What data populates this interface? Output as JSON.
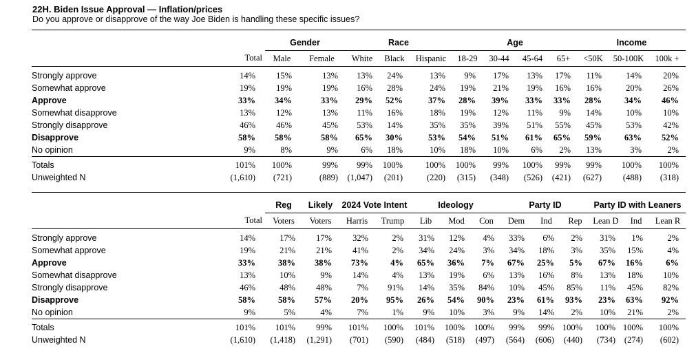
{
  "title": "22H. Biden Issue Approval — Inflation/prices",
  "subtitle": "Do you approve or disapprove of the way Joe Biden is handling these specific issues?",
  "tables": [
    {
      "groups": [
        {
          "label": "",
          "span": 1
        },
        {
          "label": "Gender",
          "span": 2
        },
        {
          "label": "Race",
          "span": 3
        },
        {
          "label": "Age",
          "span": 4
        },
        {
          "label": "Income",
          "span": 3
        }
      ],
      "columns": [
        "Total",
        "Male",
        "Female",
        "White",
        "Black",
        "Hispanic",
        "18-29",
        "30-44",
        "45-64",
        "65+",
        "<50K",
        "50-100K",
        "100k +"
      ],
      "rows": [
        {
          "label": "Strongly approve",
          "bold": false,
          "values": [
            "14%",
            "15%",
            "13%",
            "13%",
            "24%",
            "13%",
            "9%",
            "17%",
            "13%",
            "17%",
            "11%",
            "14%",
            "20%"
          ]
        },
        {
          "label": "Somewhat approve",
          "bold": false,
          "values": [
            "19%",
            "19%",
            "19%",
            "16%",
            "28%",
            "24%",
            "19%",
            "21%",
            "19%",
            "16%",
            "16%",
            "20%",
            "26%"
          ]
        },
        {
          "label": "Approve",
          "bold": true,
          "values": [
            "33%",
            "34%",
            "33%",
            "29%",
            "52%",
            "37%",
            "28%",
            "39%",
            "33%",
            "33%",
            "28%",
            "34%",
            "46%"
          ]
        },
        {
          "label": "Somewhat disapprove",
          "bold": false,
          "values": [
            "13%",
            "12%",
            "13%",
            "11%",
            "16%",
            "18%",
            "19%",
            "12%",
            "11%",
            "9%",
            "14%",
            "10%",
            "10%"
          ]
        },
        {
          "label": "Strongly disapprove",
          "bold": false,
          "values": [
            "46%",
            "46%",
            "45%",
            "53%",
            "14%",
            "35%",
            "35%",
            "39%",
            "51%",
            "55%",
            "45%",
            "53%",
            "42%"
          ]
        },
        {
          "label": "Disapprove",
          "bold": true,
          "values": [
            "58%",
            "58%",
            "58%",
            "65%",
            "30%",
            "53%",
            "54%",
            "51%",
            "61%",
            "65%",
            "59%",
            "63%",
            "52%"
          ]
        },
        {
          "label": "No opinion",
          "bold": false,
          "values": [
            "9%",
            "8%",
            "9%",
            "6%",
            "18%",
            "10%",
            "18%",
            "10%",
            "6%",
            "2%",
            "13%",
            "3%",
            "2%"
          ]
        }
      ],
      "totals": [
        {
          "label": "Totals",
          "values": [
            "101%",
            "100%",
            "99%",
            "99%",
            "100%",
            "100%",
            "100%",
            "99%",
            "100%",
            "99%",
            "99%",
            "100%",
            "100%"
          ]
        },
        {
          "label": "Unweighted N",
          "values": [
            "(1,610)",
            "(721)",
            "(889)",
            "(1,047)",
            "(201)",
            "(220)",
            "(315)",
            "(348)",
            "(526)",
            "(421)",
            "(627)",
            "(488)",
            "(318)"
          ]
        }
      ]
    },
    {
      "groups": [
        {
          "label": "",
          "span": 1
        },
        {
          "label": "Reg",
          "span": 1
        },
        {
          "label": "Likely",
          "span": 1
        },
        {
          "label": "2024 Vote Intent",
          "span": 2
        },
        {
          "label": "Ideology",
          "span": 3
        },
        {
          "label": "Party ID",
          "span": 3
        },
        {
          "label": "Party ID with Leaners",
          "span": 3
        }
      ],
      "columns": [
        "Total",
        "Voters",
        "Voters",
        "Harris",
        "Trump",
        "Lib",
        "Mod",
        "Con",
        "Dem",
        "Ind",
        "Rep",
        "Lean D",
        "Ind",
        "Lean R"
      ],
      "rows": [
        {
          "label": "Strongly approve",
          "bold": false,
          "values": [
            "14%",
            "17%",
            "17%",
            "32%",
            "2%",
            "31%",
            "12%",
            "4%",
            "33%",
            "6%",
            "2%",
            "31%",
            "1%",
            "2%"
          ]
        },
        {
          "label": "Somewhat approve",
          "bold": false,
          "values": [
            "19%",
            "21%",
            "21%",
            "41%",
            "2%",
            "34%",
            "24%",
            "3%",
            "34%",
            "18%",
            "3%",
            "35%",
            "15%",
            "4%"
          ]
        },
        {
          "label": "Approve",
          "bold": true,
          "values": [
            "33%",
            "38%",
            "38%",
            "73%",
            "4%",
            "65%",
            "36%",
            "7%",
            "67%",
            "25%",
            "5%",
            "67%",
            "16%",
            "6%"
          ]
        },
        {
          "label": "Somewhat disapprove",
          "bold": false,
          "values": [
            "13%",
            "10%",
            "9%",
            "14%",
            "4%",
            "13%",
            "19%",
            "6%",
            "13%",
            "16%",
            "8%",
            "13%",
            "18%",
            "10%"
          ]
        },
        {
          "label": "Strongly disapprove",
          "bold": false,
          "values": [
            "46%",
            "48%",
            "48%",
            "7%",
            "91%",
            "14%",
            "35%",
            "84%",
            "10%",
            "45%",
            "85%",
            "11%",
            "45%",
            "82%"
          ]
        },
        {
          "label": "Disapprove",
          "bold": true,
          "values": [
            "58%",
            "58%",
            "57%",
            "20%",
            "95%",
            "26%",
            "54%",
            "90%",
            "23%",
            "61%",
            "93%",
            "23%",
            "63%",
            "92%"
          ]
        },
        {
          "label": "No opinion",
          "bold": false,
          "values": [
            "9%",
            "5%",
            "4%",
            "7%",
            "1%",
            "9%",
            "10%",
            "3%",
            "9%",
            "14%",
            "2%",
            "10%",
            "21%",
            "2%"
          ]
        }
      ],
      "totals": [
        {
          "label": "Totals",
          "values": [
            "101%",
            "101%",
            "99%",
            "101%",
            "100%",
            "101%",
            "100%",
            "100%",
            "99%",
            "99%",
            "100%",
            "100%",
            "100%",
            "100%"
          ]
        },
        {
          "label": "Unweighted N",
          "values": [
            "(1,610)",
            "(1,418)",
            "(1,291)",
            "(701)",
            "(590)",
            "(484)",
            "(518)",
            "(497)",
            "(564)",
            "(606)",
            "(440)",
            "(734)",
            "(274)",
            "(602)"
          ]
        }
      ]
    }
  ]
}
